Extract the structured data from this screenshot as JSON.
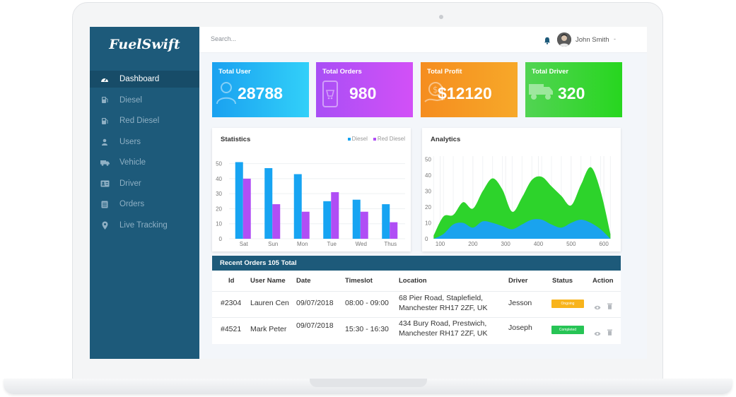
{
  "app": {
    "logo": "FuelSwift"
  },
  "sidebar": {
    "items": [
      {
        "label": "Dashboard",
        "icon": "dashboard-icon"
      },
      {
        "label": "Diesel",
        "icon": "fuel-pump-icon"
      },
      {
        "label": "Red Diesel",
        "icon": "fuel-pump-icon"
      },
      {
        "label": "Users",
        "icon": "user-icon"
      },
      {
        "label": "Vehicle",
        "icon": "truck-icon"
      },
      {
        "label": "Driver",
        "icon": "id-card-icon"
      },
      {
        "label": "Orders",
        "icon": "list-icon"
      },
      {
        "label": "Live Tracking",
        "icon": "map-pin-icon"
      }
    ]
  },
  "topbar": {
    "search_placeholder": "Search...",
    "user_name": "John Smith",
    "caret": "-"
  },
  "cards": [
    {
      "label": "Total User",
      "value": "28788",
      "icon": "user-icon",
      "gradient": [
        "#1aa1f0",
        "#32d0f9"
      ]
    },
    {
      "label": "Total Orders",
      "value": "980",
      "icon": "mobile-cart-icon",
      "gradient": [
        "#a94ff5",
        "#d250f7"
      ]
    },
    {
      "label": "Total Profit",
      "value": "$12120",
      "icon": "money-hand-icon",
      "gradient": [
        "#f58d1f",
        "#f7a829"
      ]
    },
    {
      "label": "Total Driver",
      "value": "320",
      "icon": "truck-icon",
      "gradient": [
        "#52d453",
        "#27d61f"
      ]
    }
  ],
  "statistics": {
    "title": "Statistics",
    "legend": [
      {
        "name": "Diesel",
        "color": "#17a4f2"
      },
      {
        "name": "Red Diesel",
        "color": "#b04ef5"
      }
    ]
  },
  "analytics": {
    "title": "Analytics"
  },
  "chart_data": [
    {
      "type": "bar",
      "title": "Statistics",
      "categories": [
        "Sat",
        "Sun",
        "Mon",
        "Tue",
        "Wed",
        "Thus"
      ],
      "series": [
        {
          "name": "Diesel",
          "values": [
            51,
            47,
            43,
            25,
            26,
            23
          ],
          "color": "#17a4f2"
        },
        {
          "name": "Red Diesel",
          "values": [
            40,
            23,
            18,
            31,
            18,
            11
          ],
          "color": "#b04ef5"
        }
      ],
      "yticks": [
        0,
        10,
        20,
        30,
        40,
        50
      ],
      "ylim": [
        0,
        55
      ],
      "grid": true
    },
    {
      "type": "area",
      "title": "Analytics",
      "x": [
        80,
        110,
        140,
        170,
        200,
        230,
        260,
        290,
        320,
        350,
        380,
        410,
        440,
        470,
        500,
        530,
        560,
        590,
        620
      ],
      "series": [
        {
          "values": [
            2,
            14,
            15,
            23,
            19,
            30,
            38,
            31,
            17,
            26,
            37,
            39,
            33,
            27,
            21,
            34,
            45,
            30,
            3
          ],
          "color": "#2dd32b"
        },
        {
          "values": [
            0,
            3,
            9,
            10,
            7,
            11,
            10,
            8,
            6,
            9,
            12,
            12,
            9,
            7,
            10,
            12,
            10,
            6,
            0
          ],
          "color": "#1aa3ee"
        }
      ],
      "xticks": [
        100,
        200,
        300,
        400,
        500,
        600
      ],
      "yticks": [
        0,
        10,
        20,
        30,
        40,
        50
      ],
      "xlim": [
        75,
        630
      ],
      "ylim": [
        0,
        52
      ],
      "grid": true
    }
  ],
  "orders": {
    "title": "Recent Orders 105 Total",
    "columns": [
      "Id",
      "User Name",
      "Date",
      "Timeslot",
      "Location",
      "Driver",
      "Status",
      "Action"
    ],
    "rows": [
      {
        "id": "#2304",
        "user": "Lauren Cen",
        "date": "09/07/2018",
        "timeslot": "08:00 - 09:00",
        "location1": "68  Pier Road, Staplefield,",
        "location2": "Manchester RH17 2ZF, UK",
        "driver": "Jesson",
        "status": "Ongoing",
        "status_color": "#f8b41c"
      },
      {
        "id": "#4521",
        "user": "Mark Peter",
        "date": "09/07/2018",
        "timeslot": "15:30 - 16:30",
        "location1": "434 Bury Road, Prestwich,",
        "location2": "Manchester RH17 2ZF, UK",
        "driver": "Joseph",
        "status": "Completed",
        "status_color": "#27c455"
      }
    ]
  }
}
